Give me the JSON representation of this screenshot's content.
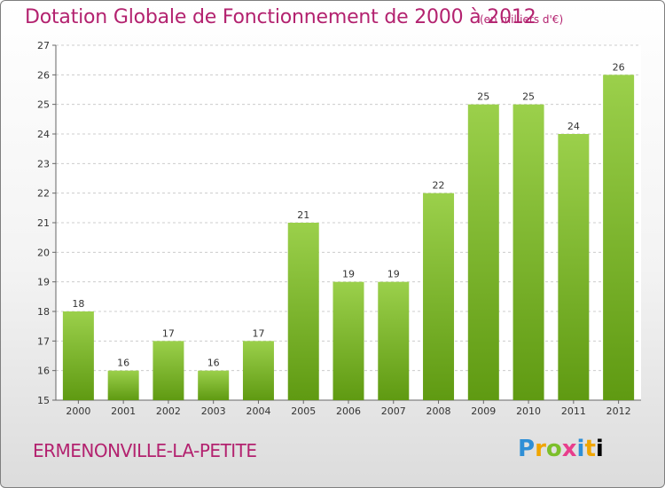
{
  "title": "Dotation Globale de Fonctionnement de 2000 à 2012",
  "subtitle": "(en milliers d'€)",
  "commune": "ERMENONVILLE-LA-PETITE",
  "logo_text": "Proxiti",
  "colors": {
    "text_accent": "#b3226f",
    "bar_light": "#9bd04b",
    "bar_dark": "#5f9a12",
    "grid": "#cccccc"
  },
  "chart_data": {
    "type": "bar",
    "title": "Dotation Globale de Fonctionnement de 2000 à 2012",
    "subtitle": "(en milliers d'€)",
    "xlabel": "",
    "ylabel": "",
    "categories": [
      "2000",
      "2001",
      "2002",
      "2003",
      "2004",
      "2005",
      "2006",
      "2007",
      "2008",
      "2009",
      "2010",
      "2011",
      "2012"
    ],
    "values": [
      18,
      16,
      17,
      16,
      17,
      21,
      19,
      19,
      22,
      25,
      25,
      24,
      26
    ],
    "ylim": [
      15,
      27
    ],
    "yticks": [
      15,
      16,
      17,
      18,
      19,
      20,
      21,
      22,
      23,
      24,
      25,
      26,
      27
    ],
    "grid": "horizontal dashed",
    "legend": "none"
  }
}
